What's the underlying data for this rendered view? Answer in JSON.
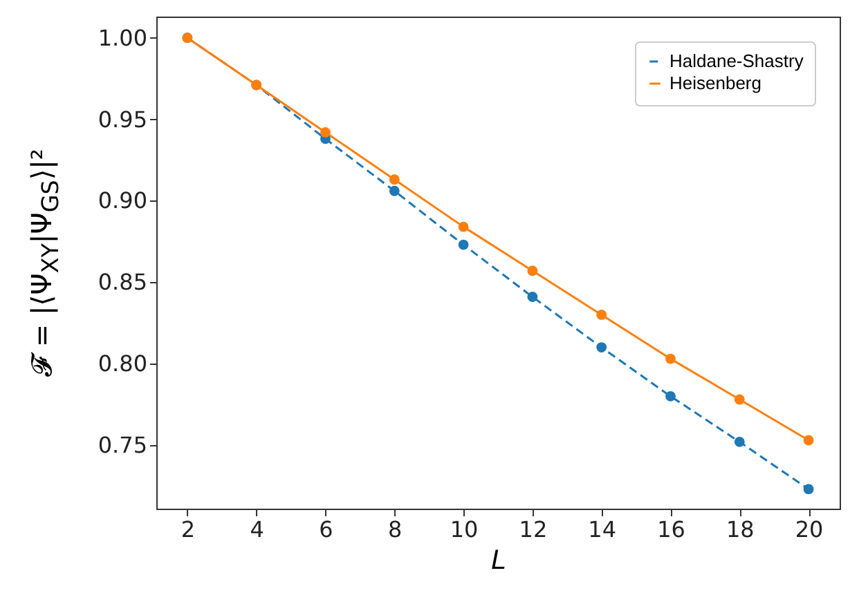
{
  "chart_data": {
    "type": "line",
    "xlabel": "L",
    "ylabel": "𝓕 = |⟨Ψ$_{XY}$|Ψ$_{GS}$⟩|²",
    "x": [
      2,
      4,
      6,
      8,
      10,
      12,
      14,
      16,
      18,
      20
    ],
    "series": [
      {
        "name": "Haldane-Shastry",
        "color": "#1f77b4",
        "line_style": "dashed",
        "values": [
          1.0,
          0.971,
          0.938,
          0.906,
          0.873,
          0.841,
          0.81,
          0.78,
          0.752,
          0.723
        ]
      },
      {
        "name": "Heisenberg",
        "color": "#ff7f0e",
        "line_style": "solid",
        "values": [
          1.0,
          0.971,
          0.942,
          0.913,
          0.884,
          0.857,
          0.83,
          0.803,
          0.778,
          0.753
        ]
      }
    ],
    "xlim": [
      1.1,
      20.9
    ],
    "ylim": [
      0.711,
      1.013
    ],
    "xticks": [
      2,
      4,
      6,
      8,
      10,
      12,
      14,
      16,
      18,
      20
    ],
    "yticks": [
      {
        "value": 0.75,
        "label": "0.75"
      },
      {
        "value": 0.8,
        "label": "0.80"
      },
      {
        "value": 0.85,
        "label": "0.85"
      },
      {
        "value": 0.9,
        "label": "0.90"
      },
      {
        "value": 0.95,
        "label": "0.95"
      },
      {
        "value": 1.0,
        "label": "1.00"
      }
    ],
    "legend": "top right",
    "marker": "circle",
    "grid": false
  }
}
